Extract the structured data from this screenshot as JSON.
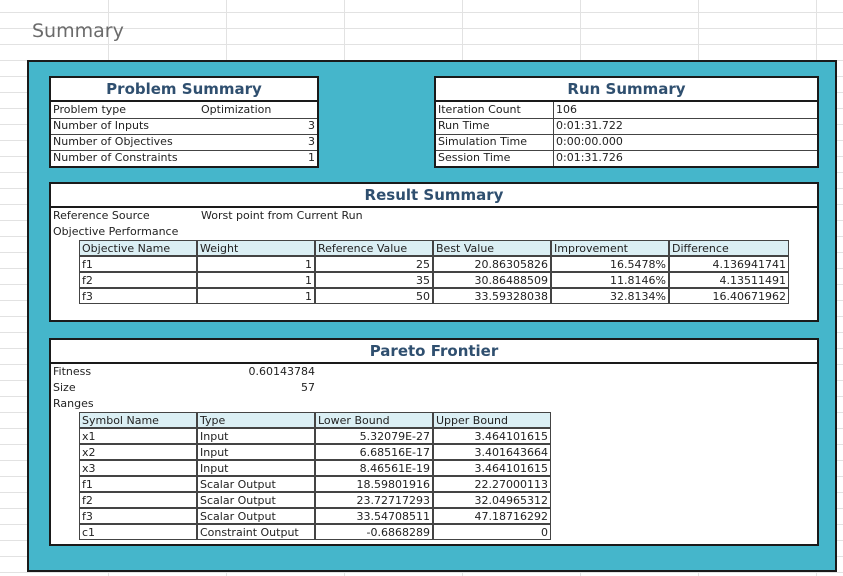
{
  "sheet_title": "Summary",
  "problem_summary": {
    "title": "Problem Summary",
    "rows": [
      {
        "label": "Problem type",
        "value": "Optimization"
      },
      {
        "label": "Number of Inputs",
        "value": "3"
      },
      {
        "label": "Number of Objectives",
        "value": "3"
      },
      {
        "label": "Number of Constraints",
        "value": "1"
      }
    ]
  },
  "run_summary": {
    "title": "Run Summary",
    "rows": [
      {
        "label": "Iteration Count",
        "value": "106"
      },
      {
        "label": "Run Time",
        "value": "0:01:31.722"
      },
      {
        "label": "Simulation Time",
        "value": "0:00:00.000"
      },
      {
        "label": "Session Time",
        "value": "0:01:31.726"
      }
    ]
  },
  "result_summary": {
    "title": "Result Summary",
    "reference_source_label": "Reference Source",
    "reference_source_value": "Worst point from Current Run",
    "objective_performance_label": "Objective Performance",
    "headers": [
      "Objective Name",
      "Weight",
      "Reference Value",
      "Best Value",
      "Improvement",
      "Difference"
    ],
    "rows": [
      [
        "f1",
        "1",
        "25",
        "20.86305826",
        "16.5478%",
        "4.136941741"
      ],
      [
        "f2",
        "1",
        "35",
        "30.86488509",
        "11.8146%",
        "4.13511491"
      ],
      [
        "f3",
        "1",
        "50",
        "33.59328038",
        "32.8134%",
        "16.40671962"
      ]
    ]
  },
  "pareto_frontier": {
    "title": "Pareto Frontier",
    "fitness_label": "Fitness",
    "fitness_value": "0.60143784",
    "size_label": "Size",
    "size_value": "57",
    "ranges_label": "Ranges",
    "headers": [
      "Symbol Name",
      "Type",
      "Lower Bound",
      "Upper Bound"
    ],
    "rows": [
      [
        "x1",
        "Input",
        "5.32079E-27",
        "3.464101615"
      ],
      [
        "x2",
        "Input",
        "6.68516E-17",
        "3.401643664"
      ],
      [
        "x3",
        "Input",
        "8.46561E-19",
        "3.464101615"
      ],
      [
        "f1",
        "Scalar Output",
        "18.59801916",
        "22.27000113"
      ],
      [
        "f2",
        "Scalar Output",
        "23.72717293",
        "32.04965312"
      ],
      [
        "f3",
        "Scalar Output",
        "33.54708511",
        "47.18716292"
      ],
      [
        "c1",
        "Constraint Output",
        "-0.6868289",
        "0"
      ]
    ]
  },
  "colors": {
    "panel": "#45b6cb",
    "title_text": "#2f4f6f",
    "header_fill": "#dbeff4"
  }
}
